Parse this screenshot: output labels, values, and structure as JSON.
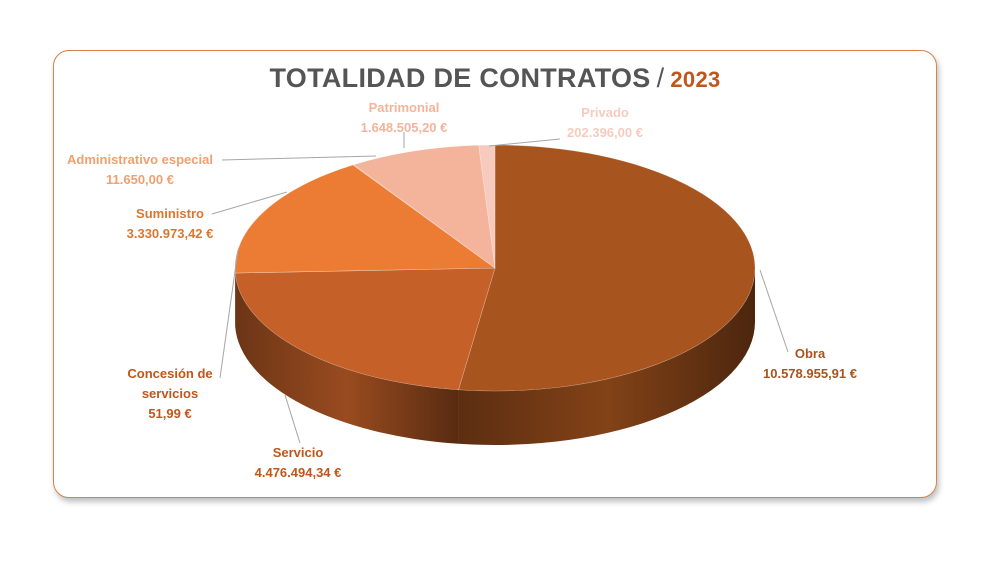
{
  "chart_data": {
    "type": "pie",
    "title": "TOTALIDAD DE CONTRATOS",
    "title_separator": "/",
    "subtitle": "2023",
    "slices": [
      {
        "name": "Obra",
        "label": "Obra",
        "value_label": "10.578.955,91 €",
        "value": 10578955.91,
        "color": "#a8541e"
      },
      {
        "name": "Servicio",
        "label": "Servicio",
        "value_label": "4.476.494,34 €",
        "value": 4476494.34,
        "color": "#c46028"
      },
      {
        "name": "Concesión de servicios",
        "label": "Concesión de servicios",
        "value_label": "51,99 €",
        "value": 51.99,
        "color": "#d06a2c"
      },
      {
        "name": "Suministro",
        "label": "Suministro",
        "value_label": "3.330.973,42 €",
        "value": 3330973.42,
        "color": "#ec7c33"
      },
      {
        "name": "Administrativo especial",
        "label": "Administrativo especial",
        "value_label": "11.650,00 €",
        "value": 11650.0,
        "color": "#f0a070"
      },
      {
        "name": "Patrimonial",
        "label": "Patrimonial",
        "value_label": "1.648.505,20 €",
        "value": 1648505.2,
        "color": "#f3b49b"
      },
      {
        "name": "Privado",
        "label": "Privado",
        "value_label": "202.396,00 €",
        "value": 202396.0,
        "color": "#f6cbbd"
      }
    ]
  }
}
